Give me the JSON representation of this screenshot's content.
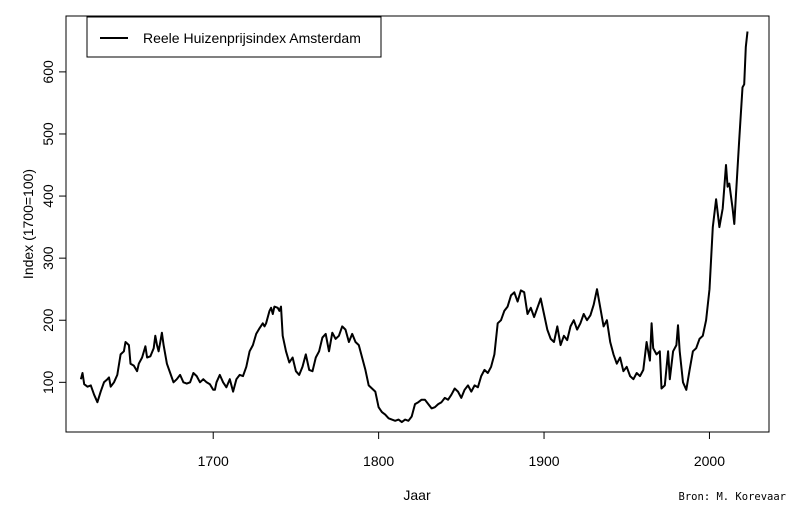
{
  "chart_data": {
    "type": "line",
    "title": "",
    "xlabel": "Jaar",
    "ylabel": "Index (1700=100)",
    "xlim": [
      1611,
      2036
    ],
    "ylim": [
      20,
      690
    ],
    "x_ticks": [
      1700,
      1800,
      1900,
      2000
    ],
    "y_ticks": [
      100,
      200,
      300,
      400,
      500,
      600
    ],
    "grid": false,
    "legend": {
      "position": "top-left",
      "entries": [
        "Reele Huizenprijsindex Amsterdam"
      ]
    },
    "series": [
      {
        "name": "Reele Huizenprijsindex Amsterdam",
        "color": "#000000",
        "points": [
          [
            1620,
            105
          ],
          [
            1621,
            115
          ],
          [
            1622,
            97
          ],
          [
            1624,
            93
          ],
          [
            1626,
            95
          ],
          [
            1628,
            80
          ],
          [
            1630,
            68
          ],
          [
            1632,
            85
          ],
          [
            1634,
            100
          ],
          [
            1636,
            105
          ],
          [
            1637,
            108
          ],
          [
            1638,
            93
          ],
          [
            1640,
            100
          ],
          [
            1642,
            112
          ],
          [
            1644,
            145
          ],
          [
            1646,
            150
          ],
          [
            1647,
            165
          ],
          [
            1649,
            160
          ],
          [
            1650,
            130
          ],
          [
            1652,
            127
          ],
          [
            1654,
            118
          ],
          [
            1655,
            130
          ],
          [
            1657,
            140
          ],
          [
            1659,
            158
          ],
          [
            1660,
            140
          ],
          [
            1662,
            142
          ],
          [
            1664,
            155
          ],
          [
            1665,
            175
          ],
          [
            1666,
            160
          ],
          [
            1667,
            150
          ],
          [
            1668,
            165
          ],
          [
            1669,
            180
          ],
          [
            1670,
            160
          ],
          [
            1672,
            130
          ],
          [
            1674,
            115
          ],
          [
            1676,
            100
          ],
          [
            1678,
            105
          ],
          [
            1680,
            112
          ],
          [
            1682,
            100
          ],
          [
            1684,
            98
          ],
          [
            1686,
            100
          ],
          [
            1688,
            115
          ],
          [
            1690,
            110
          ],
          [
            1692,
            100
          ],
          [
            1694,
            105
          ],
          [
            1696,
            100
          ],
          [
            1698,
            97
          ],
          [
            1700,
            88
          ],
          [
            1701,
            88
          ],
          [
            1702,
            100
          ],
          [
            1704,
            112
          ],
          [
            1706,
            100
          ],
          [
            1708,
            92
          ],
          [
            1710,
            105
          ],
          [
            1712,
            85
          ],
          [
            1714,
            105
          ],
          [
            1716,
            112
          ],
          [
            1718,
            110
          ],
          [
            1720,
            125
          ],
          [
            1722,
            150
          ],
          [
            1724,
            160
          ],
          [
            1726,
            178
          ],
          [
            1728,
            187
          ],
          [
            1730,
            195
          ],
          [
            1731,
            190
          ],
          [
            1732,
            195
          ],
          [
            1734,
            215
          ],
          [
            1735,
            220
          ],
          [
            1736,
            210
          ],
          [
            1737,
            222
          ],
          [
            1739,
            220
          ],
          [
            1740,
            215
          ],
          [
            1741,
            222
          ],
          [
            1742,
            175
          ],
          [
            1744,
            150
          ],
          [
            1746,
            132
          ],
          [
            1748,
            140
          ],
          [
            1750,
            118
          ],
          [
            1752,
            112
          ],
          [
            1754,
            125
          ],
          [
            1756,
            145
          ],
          [
            1758,
            120
          ],
          [
            1760,
            118
          ],
          [
            1762,
            140
          ],
          [
            1764,
            150
          ],
          [
            1766,
            172
          ],
          [
            1768,
            178
          ],
          [
            1770,
            150
          ],
          [
            1772,
            180
          ],
          [
            1774,
            170
          ],
          [
            1776,
            175
          ],
          [
            1778,
            190
          ],
          [
            1780,
            185
          ],
          [
            1782,
            165
          ],
          [
            1784,
            178
          ],
          [
            1786,
            165
          ],
          [
            1788,
            160
          ],
          [
            1790,
            140
          ],
          [
            1792,
            120
          ],
          [
            1794,
            95
          ],
          [
            1796,
            90
          ],
          [
            1798,
            85
          ],
          [
            1800,
            60
          ],
          [
            1802,
            52
          ],
          [
            1804,
            48
          ],
          [
            1806,
            42
          ],
          [
            1808,
            40
          ],
          [
            1810,
            38
          ],
          [
            1812,
            40
          ],
          [
            1814,
            36
          ],
          [
            1816,
            40
          ],
          [
            1818,
            38
          ],
          [
            1820,
            45
          ],
          [
            1822,
            65
          ],
          [
            1824,
            68
          ],
          [
            1826,
            72
          ],
          [
            1828,
            72
          ],
          [
            1830,
            65
          ],
          [
            1832,
            58
          ],
          [
            1834,
            60
          ],
          [
            1836,
            65
          ],
          [
            1838,
            68
          ],
          [
            1840,
            75
          ],
          [
            1842,
            72
          ],
          [
            1844,
            80
          ],
          [
            1846,
            90
          ],
          [
            1848,
            85
          ],
          [
            1850,
            75
          ],
          [
            1852,
            88
          ],
          [
            1854,
            95
          ],
          [
            1856,
            85
          ],
          [
            1858,
            95
          ],
          [
            1860,
            92
          ],
          [
            1862,
            110
          ],
          [
            1864,
            120
          ],
          [
            1866,
            115
          ],
          [
            1868,
            125
          ],
          [
            1870,
            145
          ],
          [
            1872,
            195
          ],
          [
            1874,
            200
          ],
          [
            1876,
            215
          ],
          [
            1878,
            222
          ],
          [
            1880,
            240
          ],
          [
            1882,
            245
          ],
          [
            1884,
            230
          ],
          [
            1886,
            248
          ],
          [
            1888,
            245
          ],
          [
            1890,
            210
          ],
          [
            1892,
            220
          ],
          [
            1894,
            205
          ],
          [
            1896,
            220
          ],
          [
            1898,
            235
          ],
          [
            1900,
            210
          ],
          [
            1902,
            185
          ],
          [
            1904,
            170
          ],
          [
            1906,
            165
          ],
          [
            1908,
            190
          ],
          [
            1910,
            160
          ],
          [
            1912,
            175
          ],
          [
            1914,
            168
          ],
          [
            1916,
            190
          ],
          [
            1918,
            200
          ],
          [
            1920,
            185
          ],
          [
            1922,
            195
          ],
          [
            1924,
            210
          ],
          [
            1926,
            200
          ],
          [
            1928,
            208
          ],
          [
            1930,
            225
          ],
          [
            1932,
            250
          ],
          [
            1934,
            220
          ],
          [
            1936,
            190
          ],
          [
            1938,
            200
          ],
          [
            1940,
            165
          ],
          [
            1942,
            145
          ],
          [
            1944,
            130
          ],
          [
            1946,
            140
          ],
          [
            1948,
            118
          ],
          [
            1950,
            125
          ],
          [
            1952,
            110
          ],
          [
            1954,
            105
          ],
          [
            1956,
            115
          ],
          [
            1958,
            110
          ],
          [
            1960,
            120
          ],
          [
            1962,
            165
          ],
          [
            1963,
            150
          ],
          [
            1964,
            135
          ],
          [
            1965,
            195
          ],
          [
            1966,
            155
          ],
          [
            1968,
            145
          ],
          [
            1970,
            150
          ],
          [
            1971,
            90
          ],
          [
            1973,
            95
          ],
          [
            1975,
            150
          ],
          [
            1976,
            105
          ],
          [
            1978,
            150
          ],
          [
            1980,
            160
          ],
          [
            1981,
            192
          ],
          [
            1982,
            150
          ],
          [
            1984,
            100
          ],
          [
            1986,
            88
          ],
          [
            1988,
            120
          ],
          [
            1990,
            150
          ],
          [
            1992,
            155
          ],
          [
            1994,
            170
          ],
          [
            1996,
            175
          ],
          [
            1998,
            200
          ],
          [
            2000,
            250
          ],
          [
            2002,
            350
          ],
          [
            2004,
            395
          ],
          [
            2006,
            350
          ],
          [
            2008,
            380
          ],
          [
            2010,
            450
          ],
          [
            2011,
            415
          ],
          [
            2012,
            420
          ],
          [
            2014,
            380
          ],
          [
            2015,
            355
          ],
          [
            2016,
            400
          ],
          [
            2018,
            490
          ],
          [
            2020,
            575
          ],
          [
            2021,
            580
          ],
          [
            2022,
            640
          ],
          [
            2023,
            665
          ]
        ]
      }
    ]
  },
  "source": "Bron: M. Korevaar"
}
